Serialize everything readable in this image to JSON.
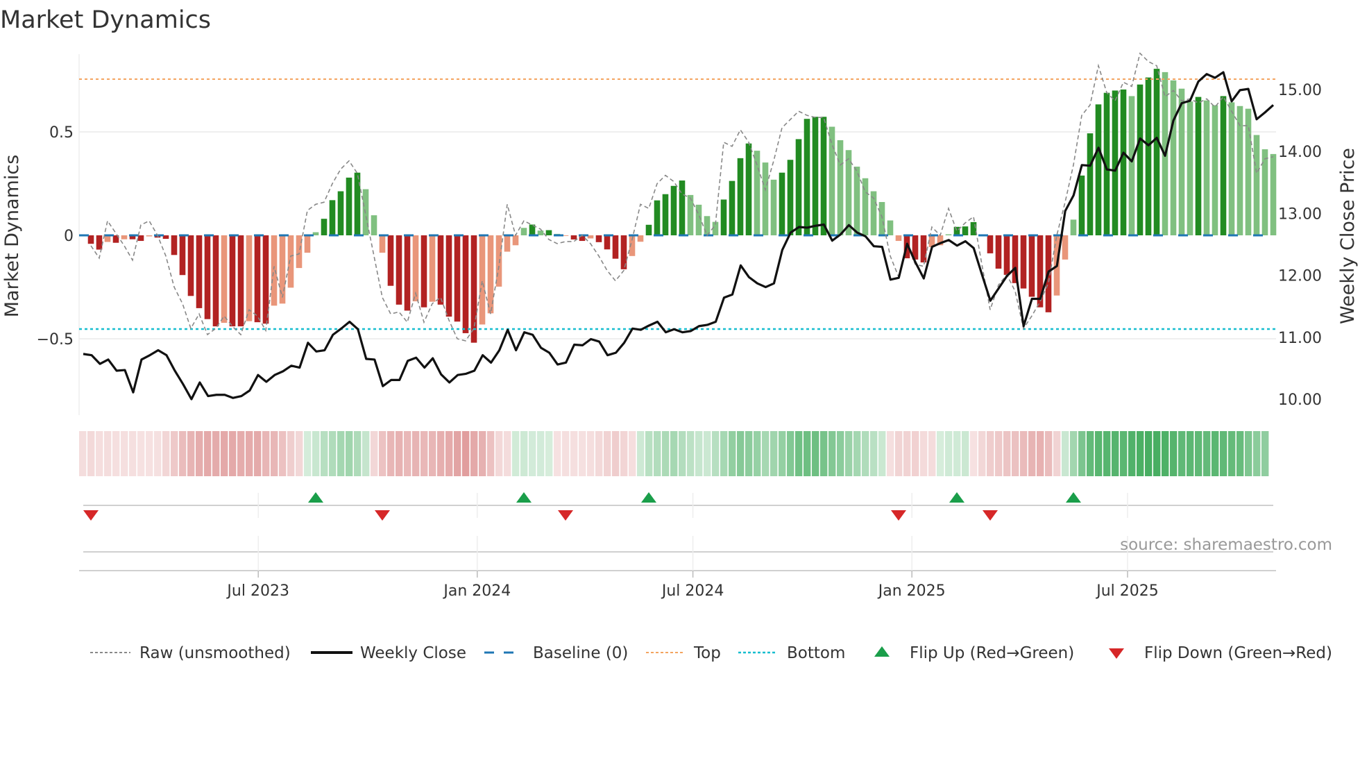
{
  "chart_data": {
    "type": "bar",
    "title": "Market Dynamics",
    "ylabel": "Market Dynamics",
    "ylabel_right": "Weekly Close Price",
    "ylim": [
      -0.87,
      0.876
    ],
    "ylim_right": [
      9.6,
      15.58
    ],
    "yticks_left": [
      "0.5",
      "0",
      "−0.5"
    ],
    "yticks_left_values": [
      0.5,
      0,
      -0.5
    ],
    "yticks_right": [
      "15.00",
      "14.00",
      "13.00",
      "12.00",
      "11.00",
      "10.00"
    ],
    "yticks_right_values": [
      15,
      14,
      13,
      12,
      11,
      10
    ],
    "xticks": [
      "Jul 2023",
      "Jan 2024",
      "Jul 2024",
      "Jan 2025",
      "Jul 2025"
    ],
    "xticks_week_index": [
      20.1,
      46.4,
      72.3,
      98.6,
      124.5
    ],
    "top_level": 0.755,
    "bottom_level": -0.453,
    "baseline": 0,
    "colors": {
      "up_strong": "#228b22",
      "up_weak": "#80c080",
      "down_strong": "#b22222",
      "down_weak": "#e9967a",
      "baseline": "#1f77b4",
      "top": "#f4a460",
      "bottom": "#17becf",
      "raw": "#888888",
      "close": "#111111",
      "flip_up": "#1a9e4a",
      "flip_down": "#d62728"
    },
    "dynamics": [
      -0.041,
      -0.069,
      -0.032,
      -0.036,
      -0.019,
      -0.019,
      -0.027,
      -0.005,
      -0.011,
      -0.017,
      -0.095,
      -0.192,
      -0.293,
      -0.352,
      -0.405,
      -0.44,
      -0.423,
      -0.44,
      -0.44,
      -0.415,
      -0.42,
      -0.427,
      -0.34,
      -0.33,
      -0.253,
      -0.158,
      -0.084,
      0.015,
      0.08,
      0.17,
      0.213,
      0.279,
      0.303,
      0.223,
      0.097,
      -0.084,
      -0.244,
      -0.335,
      -0.364,
      -0.319,
      -0.348,
      -0.321,
      -0.335,
      -0.393,
      -0.417,
      -0.473,
      -0.519,
      -0.431,
      -0.377,
      -0.248,
      -0.079,
      -0.048,
      0.036,
      0.052,
      0.023,
      0.025,
      0.007,
      -0.003,
      -0.02,
      -0.027,
      -0.015,
      -0.033,
      -0.068,
      -0.113,
      -0.164,
      -0.1,
      -0.031,
      0.051,
      0.169,
      0.199,
      0.239,
      0.265,
      0.195,
      0.148,
      0.093,
      0.065,
      0.173,
      0.263,
      0.373,
      0.444,
      0.409,
      0.352,
      0.269,
      0.303,
      0.365,
      0.465,
      0.563,
      0.573,
      0.573,
      0.525,
      0.46,
      0.412,
      0.332,
      0.276,
      0.213,
      0.161,
      0.072,
      -0.027,
      -0.111,
      -0.117,
      -0.131,
      -0.057,
      -0.048,
      0.005,
      0.041,
      0.043,
      0.064,
      -0.003,
      -0.087,
      -0.161,
      -0.191,
      -0.231,
      -0.257,
      -0.297,
      -0.348,
      -0.372,
      -0.291,
      -0.117,
      0.076,
      0.289,
      0.493,
      0.633,
      0.689,
      0.7,
      0.705,
      0.673,
      0.729,
      0.763,
      0.805,
      0.789,
      0.749,
      0.709,
      0.647,
      0.669,
      0.652,
      0.629,
      0.673,
      0.643,
      0.625,
      0.612,
      0.485,
      0.416,
      0.393
    ],
    "raw": [
      -0.05,
      -0.11,
      0.07,
      0.01,
      -0.05,
      -0.12,
      0.05,
      0.07,
      0.0,
      -0.1,
      -0.25,
      -0.33,
      -0.45,
      -0.38,
      -0.48,
      -0.45,
      -0.39,
      -0.44,
      -0.48,
      -0.36,
      -0.39,
      -0.46,
      -0.15,
      -0.3,
      -0.1,
      -0.09,
      0.12,
      0.15,
      0.16,
      0.25,
      0.32,
      0.36,
      0.3,
      0.1,
      -0.1,
      -0.3,
      -0.38,
      -0.37,
      -0.42,
      -0.28,
      -0.42,
      -0.33,
      -0.3,
      -0.41,
      -0.5,
      -0.51,
      -0.45,
      -0.22,
      -0.38,
      -0.15,
      0.15,
      0.0,
      0.07,
      0.05,
      0.03,
      -0.02,
      -0.04,
      -0.03,
      -0.03,
      0.0,
      -0.04,
      -0.1,
      -0.17,
      -0.22,
      -0.17,
      -0.02,
      0.15,
      0.13,
      0.25,
      0.29,
      0.26,
      0.2,
      0.18,
      0.1,
      0.0,
      0.05,
      0.45,
      0.43,
      0.51,
      0.45,
      0.34,
      0.22,
      0.36,
      0.52,
      0.56,
      0.6,
      0.58,
      0.57,
      0.57,
      0.44,
      0.34,
      0.37,
      0.31,
      0.21,
      0.18,
      0.09,
      -0.1,
      -0.2,
      -0.04,
      -0.14,
      -0.15,
      0.04,
      0.0,
      0.13,
      0.02,
      0.06,
      0.09,
      -0.14,
      -0.36,
      -0.24,
      -0.19,
      -0.27,
      -0.45,
      -0.39,
      -0.32,
      -0.23,
      0.0,
      0.16,
      0.34,
      0.58,
      0.63,
      0.82,
      0.69,
      0.65,
      0.74,
      0.72,
      0.88,
      0.84,
      0.82,
      0.67,
      0.7,
      0.65,
      0.66,
      0.64,
      0.66,
      0.62,
      0.67,
      0.6,
      0.53,
      0.53,
      0.3,
      0.37,
      0.38
    ],
    "weekly_close": [
      10.73,
      10.71,
      10.57,
      10.64,
      10.46,
      10.47,
      10.11,
      10.64,
      10.71,
      10.79,
      10.71,
      10.46,
      10.24,
      10.0,
      10.27,
      10.05,
      10.07,
      10.07,
      10.02,
      10.05,
      10.14,
      10.39,
      10.28,
      10.39,
      10.45,
      10.54,
      10.51,
      10.91,
      10.77,
      10.79,
      11.04,
      11.14,
      11.25,
      11.13,
      10.65,
      10.64,
      10.21,
      10.31,
      10.31,
      10.62,
      10.67,
      10.51,
      10.66,
      10.4,
      10.27,
      10.39,
      10.41,
      10.46,
      10.71,
      10.59,
      10.79,
      11.12,
      10.79,
      11.08,
      11.04,
      10.83,
      10.75,
      10.56,
      10.59,
      10.88,
      10.87,
      10.97,
      10.93,
      10.71,
      10.75,
      10.91,
      11.14,
      11.12,
      11.19,
      11.25,
      11.08,
      11.13,
      11.08,
      11.1,
      11.18,
      11.2,
      11.25,
      11.64,
      11.69,
      12.16,
      11.97,
      11.87,
      11.81,
      11.87,
      12.41,
      12.69,
      12.78,
      12.77,
      12.8,
      12.82,
      12.56,
      12.66,
      12.81,
      12.69,
      12.63,
      12.47,
      12.46,
      11.93,
      11.96,
      12.51,
      12.21,
      11.95,
      12.46,
      12.52,
      12.57,
      12.48,
      12.55,
      12.44,
      12.01,
      11.59,
      11.79,
      11.99,
      12.12,
      11.18,
      11.62,
      11.62,
      12.06,
      12.15,
      13.04,
      13.29,
      13.78,
      13.77,
      14.06,
      13.71,
      13.69,
      13.98,
      13.84,
      14.21,
      14.1,
      14.22,
      13.93,
      14.5,
      14.78,
      14.82,
      15.13,
      15.25,
      15.19,
      15.28,
      14.81,
      14.99,
      15.01,
      14.52,
      14.63,
      14.75
    ],
    "flip_up_week_index": [
      27,
      52,
      67,
      104,
      118
    ],
    "flip_down_week_index": [
      0,
      35,
      57,
      97,
      108
    ],
    "legend_position": "bottom",
    "legend": [
      "Raw (unsmoothed)",
      "Weekly Close",
      "Baseline (0)",
      "Top",
      "Bottom",
      "Flip Up (Red→Green)",
      "Flip Down (Green→Red)"
    ],
    "source": "source: sharemaestro.com"
  }
}
